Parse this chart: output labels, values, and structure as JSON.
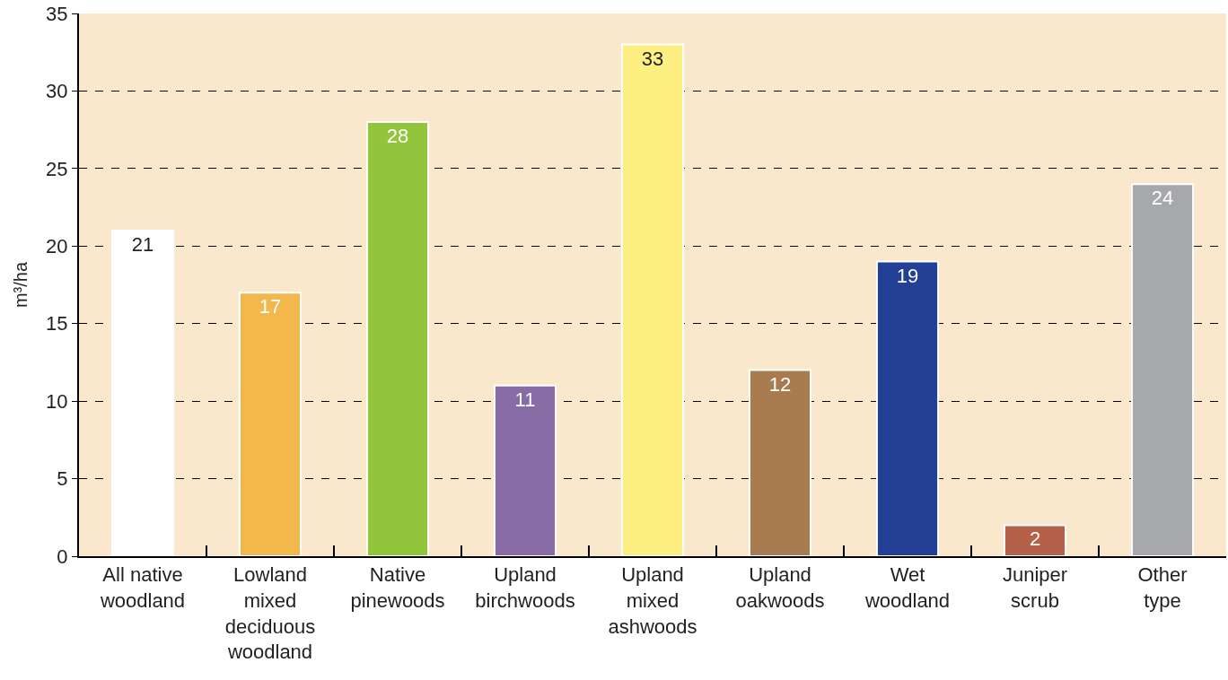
{
  "chart_data": {
    "type": "bar",
    "ylabel": "m³/ha",
    "categories": [
      "All native\nwoodland",
      "Lowland\nmixed\ndeciduous\nwoodland",
      "Native\npinewoods",
      "Upland\nbirchwoods",
      "Upland\nmixed\nashwoods",
      "Upland\noakwoods",
      "Wet\nwoodland",
      "Juniper\nscrub",
      "Other\ntype"
    ],
    "values": [
      21,
      17,
      28,
      11,
      33,
      12,
      19,
      2,
      24
    ],
    "colors": [
      "#ffffff",
      "#f2b84b",
      "#92c43c",
      "#876ca5",
      "#fdef82",
      "#a87b50",
      "#233f96",
      "#b5614a",
      "#a7a8ab"
    ],
    "ylim": [
      0,
      35
    ],
    "yticks": [
      0,
      5,
      10,
      15,
      20,
      25,
      30,
      35
    ],
    "grid": "y",
    "data_labels": true,
    "legend": false
  }
}
